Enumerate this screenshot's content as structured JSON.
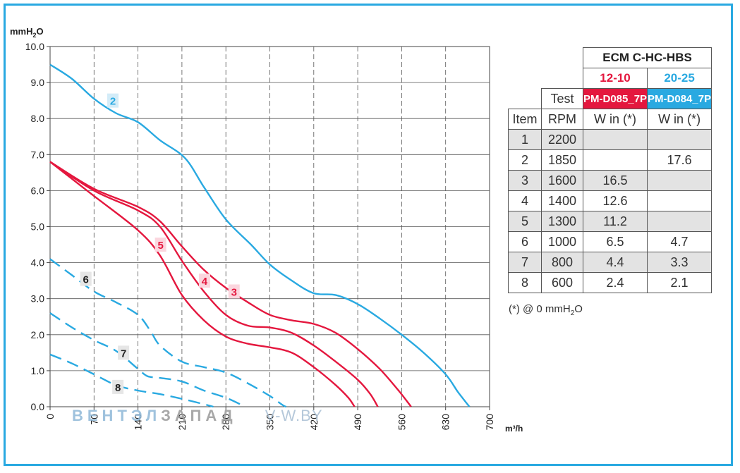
{
  "chart_data": {
    "type": "line",
    "ylabel": "mmH",
    "ylabel_sub": "2",
    "ylabel_tail": "O",
    "xlabel": "m³/h",
    "xlim": [
      0,
      700
    ],
    "ylim": [
      0,
      10
    ],
    "grid": true,
    "x_ticks": [
      0,
      70,
      140,
      210,
      280,
      350,
      420,
      490,
      560,
      630,
      700
    ],
    "x_tick_labels": [
      "0",
      "70",
      "140",
      "210",
      "280",
      "350",
      "420",
      "490",
      "560",
      "630",
      "700"
    ],
    "y_ticks": [
      0,
      1,
      2,
      3,
      4,
      5,
      6,
      7,
      8,
      9,
      10
    ],
    "y_tick_labels": [
      "0.0",
      "1.0",
      "2.0",
      "3.0",
      "4.0",
      "5.0",
      "6.0",
      "7.0",
      "8.0",
      "9.0",
      "10.0"
    ],
    "series": [
      {
        "name": "2",
        "color": "#29a9e1",
        "dashed": false,
        "label_at": [
          100,
          8.5
        ],
        "points": [
          [
            0,
            9.5
          ],
          [
            35,
            9.1
          ],
          [
            70,
            8.55
          ],
          [
            105,
            8.15
          ],
          [
            140,
            7.9
          ],
          [
            175,
            7.4
          ],
          [
            215,
            6.9
          ],
          [
            245,
            6.1
          ],
          [
            280,
            5.2
          ],
          [
            320,
            4.5
          ],
          [
            350,
            3.95
          ],
          [
            385,
            3.5
          ],
          [
            420,
            3.15
          ],
          [
            455,
            3.1
          ],
          [
            490,
            2.85
          ],
          [
            525,
            2.45
          ],
          [
            560,
            2.0
          ],
          [
            595,
            1.5
          ],
          [
            630,
            0.9
          ],
          [
            650,
            0.4
          ],
          [
            668,
            0.0
          ]
        ]
      },
      {
        "name": "3",
        "color": "#e4173e",
        "dashed": false,
        "label_at": [
          293,
          3.2
        ],
        "points": [
          [
            0,
            6.8
          ],
          [
            70,
            6.05
          ],
          [
            140,
            5.55
          ],
          [
            175,
            5.15
          ],
          [
            210,
            4.45
          ],
          [
            245,
            3.8
          ],
          [
            280,
            3.3
          ],
          [
            315,
            2.9
          ],
          [
            350,
            2.55
          ],
          [
            385,
            2.4
          ],
          [
            420,
            2.3
          ],
          [
            455,
            2.05
          ],
          [
            490,
            1.6
          ],
          [
            525,
            1.05
          ],
          [
            555,
            0.45
          ],
          [
            575,
            0.0
          ]
        ]
      },
      {
        "name": "4",
        "color": "#e4173e",
        "dashed": false,
        "label_at": [
          246,
          3.5
        ],
        "points": [
          [
            0,
            6.8
          ],
          [
            70,
            6.0
          ],
          [
            140,
            5.45
          ],
          [
            175,
            5.0
          ],
          [
            210,
            4.05
          ],
          [
            245,
            3.2
          ],
          [
            280,
            2.55
          ],
          [
            315,
            2.25
          ],
          [
            350,
            2.2
          ],
          [
            385,
            2.05
          ],
          [
            420,
            1.7
          ],
          [
            455,
            1.25
          ],
          [
            490,
            0.75
          ],
          [
            510,
            0.35
          ],
          [
            522,
            0.0
          ]
        ]
      },
      {
        "name": "5",
        "color": "#e4173e",
        "dashed": false,
        "label_at": [
          176,
          4.5
        ],
        "points": [
          [
            0,
            6.8
          ],
          [
            70,
            5.85
          ],
          [
            140,
            4.9
          ],
          [
            175,
            4.2
          ],
          [
            210,
            3.1
          ],
          [
            245,
            2.4
          ],
          [
            280,
            1.95
          ],
          [
            315,
            1.75
          ],
          [
            350,
            1.65
          ],
          [
            385,
            1.5
          ],
          [
            420,
            1.1
          ],
          [
            455,
            0.6
          ],
          [
            475,
            0.25
          ],
          [
            485,
            0.0
          ]
        ]
      },
      {
        "name": "6",
        "color": "#29a9e1",
        "dashed": true,
        "label_at": [
          57,
          3.55
        ],
        "points": [
          [
            0,
            4.1
          ],
          [
            35,
            3.65
          ],
          [
            70,
            3.2
          ],
          [
            105,
            2.9
          ],
          [
            140,
            2.55
          ],
          [
            160,
            2.1
          ],
          [
            175,
            1.7
          ],
          [
            210,
            1.25
          ],
          [
            245,
            1.1
          ],
          [
            280,
            0.95
          ],
          [
            315,
            0.65
          ],
          [
            350,
            0.3
          ],
          [
            370,
            0.05
          ],
          [
            376,
            0.0
          ]
        ]
      },
      {
        "name": "7",
        "color": "#29a9e1",
        "dashed": true,
        "label_at": [
          117,
          1.5
        ],
        "points": [
          [
            0,
            2.6
          ],
          [
            35,
            2.2
          ],
          [
            70,
            1.85
          ],
          [
            105,
            1.55
          ],
          [
            140,
            1.05
          ],
          [
            155,
            0.85
          ],
          [
            175,
            0.8
          ],
          [
            210,
            0.7
          ],
          [
            245,
            0.45
          ],
          [
            280,
            0.25
          ],
          [
            305,
            0.05
          ],
          [
            310,
            0.0
          ]
        ]
      },
      {
        "name": "8",
        "color": "#29a9e1",
        "dashed": true,
        "label_at": [
          108,
          0.55
        ],
        "points": [
          [
            0,
            1.45
          ],
          [
            35,
            1.2
          ],
          [
            70,
            0.9
          ],
          [
            105,
            0.6
          ],
          [
            140,
            0.45
          ],
          [
            175,
            0.35
          ],
          [
            210,
            0.22
          ],
          [
            245,
            0.07
          ],
          [
            260,
            0.0
          ]
        ]
      }
    ]
  },
  "table": {
    "model": "ECM C-HC-HBS",
    "size_a": "12-10",
    "size_b": "20-25",
    "test_label": "Test",
    "code_a": "PM-D085_7P",
    "code_b": "PM-D084_7P",
    "head_item": "Item",
    "head_rpm": "RPM",
    "head_win": "W in (*)",
    "rows": [
      {
        "item": "1",
        "rpm": "2200",
        "a": "",
        "b": ""
      },
      {
        "item": "2",
        "rpm": "1850",
        "a": "",
        "b": "17.6"
      },
      {
        "item": "3",
        "rpm": "1600",
        "a": "16.5",
        "b": ""
      },
      {
        "item": "4",
        "rpm": "1400",
        "a": "12.6",
        "b": ""
      },
      {
        "item": "5",
        "rpm": "1300",
        "a": "11.2",
        "b": ""
      },
      {
        "item": "6",
        "rpm": "1000",
        "a": "6.5",
        "b": "4.7"
      },
      {
        "item": "7",
        "rpm": "800",
        "a": "4.4",
        "b": "3.3"
      },
      {
        "item": "8",
        "rpm": "600",
        "a": "2.4",
        "b": "2.1"
      }
    ]
  },
  "footnote": {
    "prefix": "(*) @ 0 mmH",
    "sub": "2",
    "suffix": "O"
  },
  "watermark": {
    "part1": "ВЕНТЭЛ",
    "part2": "ЗАПАД",
    "part3": "V-W.BY"
  },
  "colors": {
    "frame": "#29a9e1",
    "red": "#e4173e",
    "blue": "#29a9e1"
  }
}
